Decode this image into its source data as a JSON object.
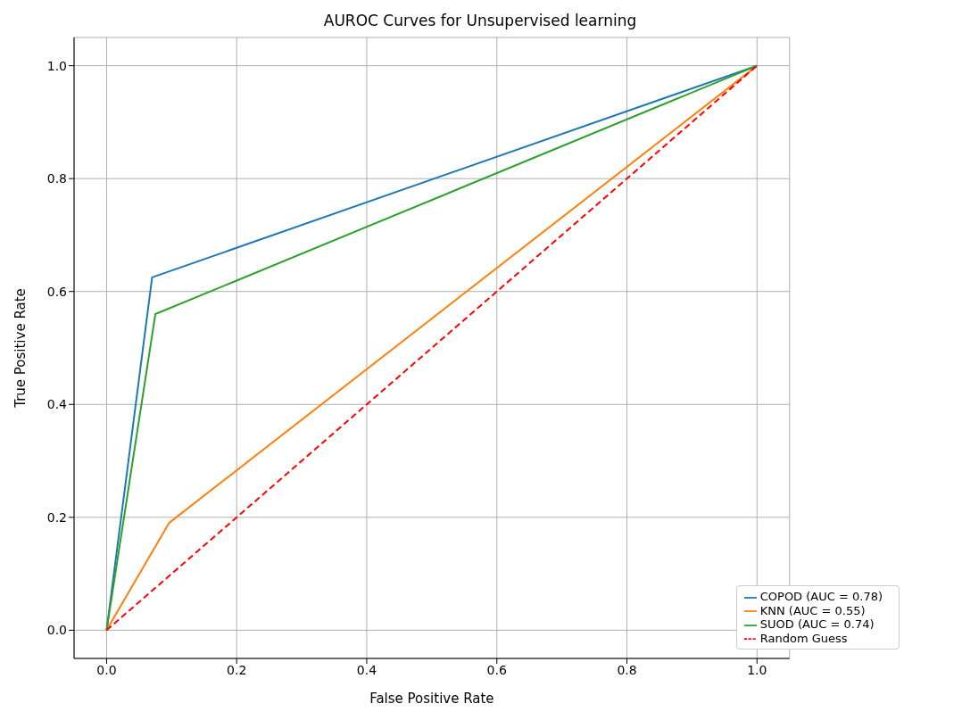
{
  "chart_data": {
    "type": "line",
    "title": "AUROC Curves for Unsupervised learning",
    "xlabel": "False Positive Rate",
    "ylabel": "True Positive Rate",
    "series": [
      {
        "name": "COPOD (AUC = 0.78)",
        "color": "#1f77b4",
        "x": [
          0,
          0.07,
          1
        ],
        "values": [
          0,
          0.625,
          1
        ]
      },
      {
        "name": "KNN (AUC = 0.55)",
        "color": "#ff7f0e",
        "x": [
          0,
          0.096,
          1
        ],
        "values": [
          0,
          0.19,
          1
        ]
      },
      {
        "name": "SUOD (AUC = 0.74)",
        "color": "#2ca02c",
        "x": [
          0,
          0.075,
          1
        ],
        "values": [
          0,
          0.56,
          1
        ]
      },
      {
        "name": "Random Guess",
        "color": "#ff0000",
        "x": [
          0,
          1
        ],
        "values": [
          0,
          1
        ],
        "line_style": "dashed"
      }
    ],
    "xlim": [
      -0.05,
      1.05
    ],
    "ylim": [
      -0.05,
      1.05
    ],
    "xticks": [
      {
        "value": 0,
        "label": "0.0"
      },
      {
        "value": 0.2,
        "label": "0.2"
      },
      {
        "value": 0.4,
        "label": "0.4"
      },
      {
        "value": 0.6,
        "label": "0.6"
      },
      {
        "value": 0.8,
        "label": "0.8"
      },
      {
        "value": 1,
        "label": "1.0"
      }
    ],
    "yticks": [
      {
        "value": 0,
        "label": "0.0"
      },
      {
        "value": 0.2,
        "label": "0.2"
      },
      {
        "value": 0.4,
        "label": "0.4"
      },
      {
        "value": 0.6,
        "label": "0.6"
      },
      {
        "value": 0.8,
        "label": "0.8"
      },
      {
        "value": 1,
        "label": "1.0"
      }
    ],
    "grid": true,
    "legend": "bottom right"
  }
}
